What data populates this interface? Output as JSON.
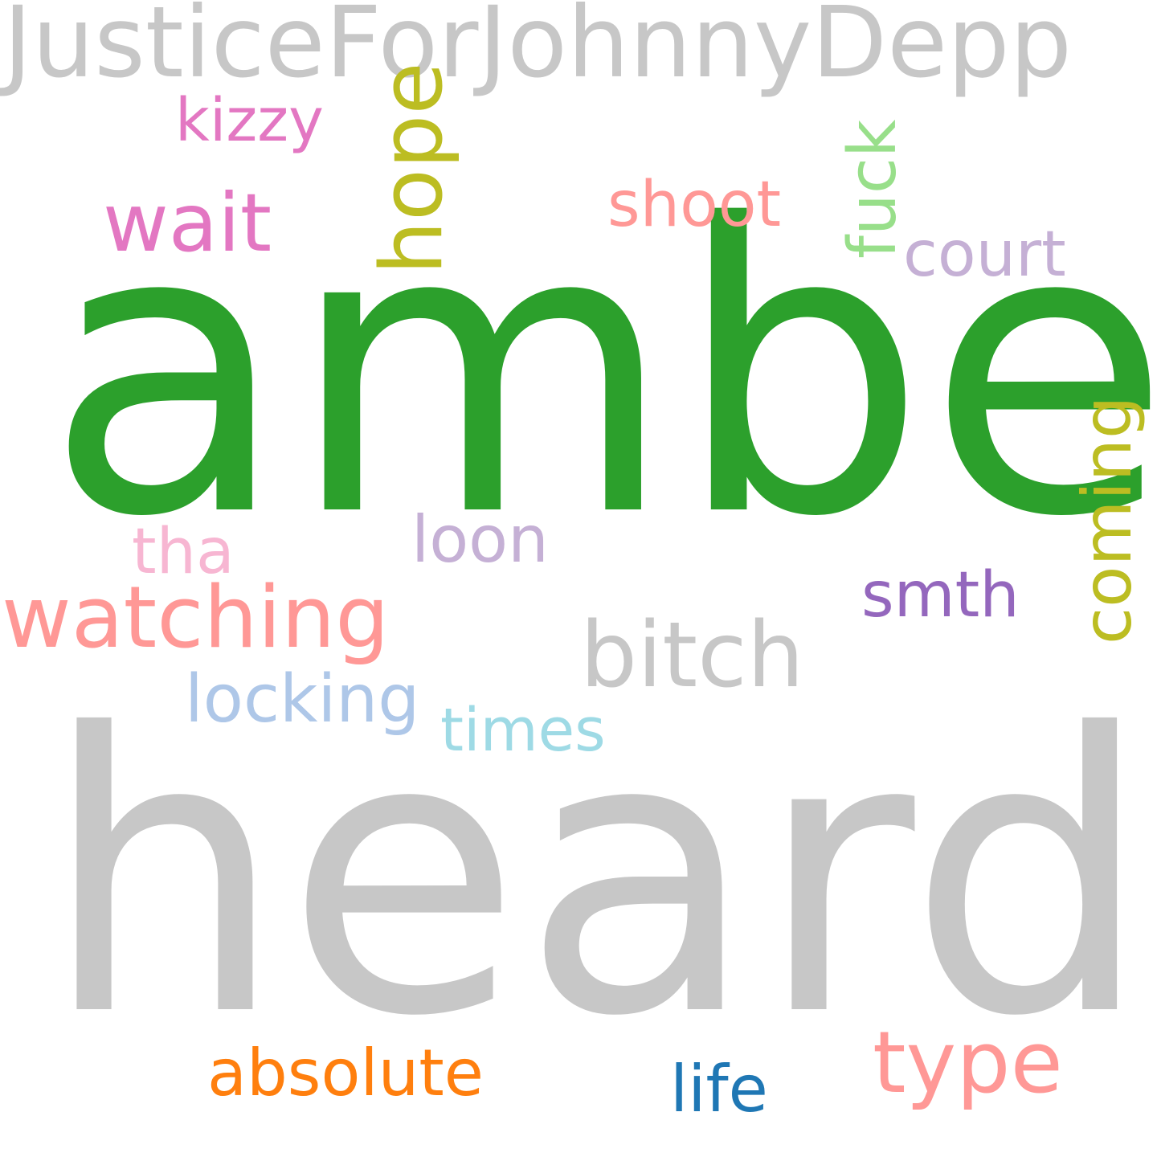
{
  "words": [
    {
      "id": "justice",
      "text": "JusticeForJohnnyDepp",
      "color": "#c7c7c7",
      "orientation": "horizontal"
    },
    {
      "id": "amber",
      "text": "amber",
      "color": "#2ca02c",
      "orientation": "horizontal"
    },
    {
      "id": "heard",
      "text": "heard",
      "color": "#c7c7c7",
      "orientation": "horizontal"
    },
    {
      "id": "kizzy",
      "text": "kizzy",
      "color": "#e377c2",
      "orientation": "horizontal"
    },
    {
      "id": "wait",
      "text": "wait",
      "color": "#e377c2",
      "orientation": "horizontal"
    },
    {
      "id": "hope",
      "text": "hope",
      "color": "#bcbd22",
      "orientation": "vertical"
    },
    {
      "id": "shoot",
      "text": "shoot",
      "color": "#ff9896",
      "orientation": "horizontal"
    },
    {
      "id": "fuck",
      "text": "fuck",
      "color": "#98df8a",
      "orientation": "vertical"
    },
    {
      "id": "court",
      "text": "court",
      "color": "#c5b0d5",
      "orientation": "horizontal"
    },
    {
      "id": "tha",
      "text": "tha",
      "color": "#f7b6d2",
      "orientation": "horizontal"
    },
    {
      "id": "loon",
      "text": "loon",
      "color": "#c5b0d5",
      "orientation": "horizontal"
    },
    {
      "id": "watching",
      "text": "watching",
      "color": "#ff9896",
      "orientation": "horizontal"
    },
    {
      "id": "smth",
      "text": "smth",
      "color": "#9467bd",
      "orientation": "horizontal"
    },
    {
      "id": "coming",
      "text": "coming",
      "color": "#bcbd22",
      "orientation": "vertical"
    },
    {
      "id": "bitch",
      "text": "bitch",
      "color": "#c7c7c7",
      "orientation": "horizontal"
    },
    {
      "id": "locking",
      "text": "locking",
      "color": "#aec7e8",
      "orientation": "horizontal"
    },
    {
      "id": "times",
      "text": "times",
      "color": "#9edae5",
      "orientation": "horizontal"
    },
    {
      "id": "absolute",
      "text": "absolute",
      "color": "#ff7f0e",
      "orientation": "horizontal"
    },
    {
      "id": "life",
      "text": "life",
      "color": "#1f77b4",
      "orientation": "horizontal"
    },
    {
      "id": "type",
      "text": "type",
      "color": "#ff9896",
      "orientation": "horizontal"
    }
  ]
}
